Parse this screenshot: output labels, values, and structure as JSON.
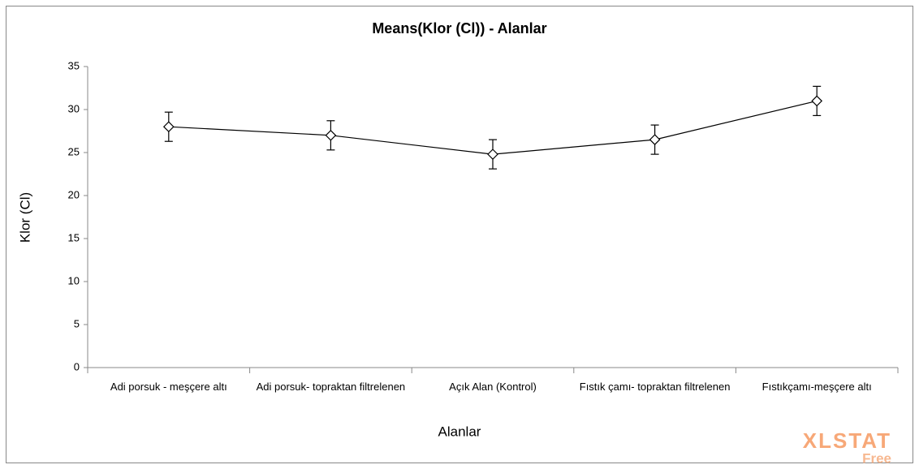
{
  "chart_data": {
    "type": "line",
    "title": "Means(Klor (Cl)) - Alanlar",
    "x_label": "Alanlar",
    "y_label": "Klor (Cl)",
    "categories": [
      "Adi porsuk - meşçere altı",
      "Adi porsuk- topraktan filtrelenen",
      "Açık Alan (Kontrol)",
      "Fıstık çamı- topraktan filtrelenen",
      "Fıstıkçamı-meşçere altı"
    ],
    "values": [
      28.0,
      27.0,
      24.8,
      26.5,
      31.0
    ],
    "errors": [
      1.7,
      1.7,
      1.7,
      1.7,
      1.7
    ],
    "color": "#000000",
    "ylim": [
      0,
      35
    ],
    "yticks": [
      0,
      5,
      10,
      15,
      20,
      25,
      30,
      35
    ],
    "grid": false
  },
  "watermark": {
    "brand": "XLSTAT",
    "edition": "Free"
  }
}
